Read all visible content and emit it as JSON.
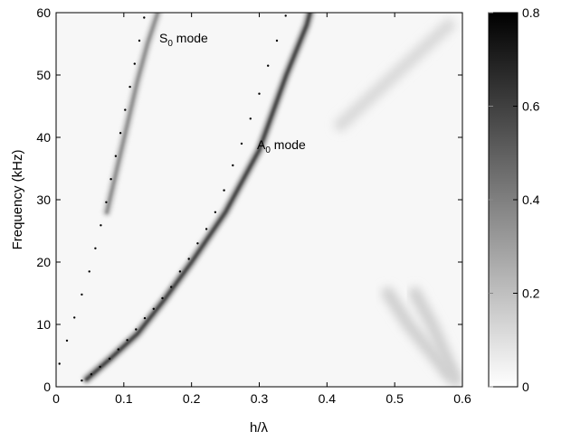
{
  "chart_data": {
    "type": "heatmap",
    "title": "",
    "xlabel": "h/λ",
    "ylabel": "Frequency (kHz)",
    "xlim": [
      0,
      0.6
    ],
    "ylim": [
      0,
      60
    ],
    "xticks": [
      0,
      0.1,
      0.2,
      0.3,
      0.4,
      0.5,
      0.6
    ],
    "xtick_labels": [
      "0",
      "0.1",
      "0.2",
      "0.3",
      "0.4",
      "0.5",
      "0.6"
    ],
    "yticks": [
      0,
      10,
      20,
      30,
      40,
      50,
      60
    ],
    "ytick_labels": [
      "0",
      "10",
      "20",
      "30",
      "40",
      "50",
      "60"
    ],
    "grid": false,
    "colormap": "gray reversed (white = 0, black = max)",
    "colorbar": {
      "range": [
        0,
        0.8
      ],
      "ticks": [
        0,
        0.2,
        0.4,
        0.6,
        0.8
      ],
      "tick_labels": [
        "0",
        "0.2",
        "0.4",
        "0.6",
        "0.8"
      ]
    },
    "annotations": [
      {
        "text_main": "S",
        "text_sub": "0",
        "text_rest": " mode",
        "x": 0.135,
        "y": 55.0
      },
      {
        "text_main": "A",
        "text_sub": "0",
        "text_rest": " mode",
        "x": 0.27,
        "y": 38.5
      }
    ],
    "ridges": [
      {
        "mode": "A0",
        "intensity": 0.6,
        "points": [
          [
            0.045,
            1.2
          ],
          [
            0.08,
            4.5
          ],
          [
            0.12,
            8.5
          ],
          [
            0.16,
            14
          ],
          [
            0.2,
            20
          ],
          [
            0.25,
            28
          ],
          [
            0.3,
            38
          ],
          [
            0.34,
            50
          ],
          [
            0.37,
            58
          ],
          [
            0.375,
            60
          ]
        ]
      },
      {
        "mode": "S0",
        "intensity": 0.35,
        "points": [
          [
            0.075,
            28
          ],
          [
            0.09,
            35
          ],
          [
            0.105,
            42
          ],
          [
            0.12,
            49
          ],
          [
            0.135,
            55
          ],
          [
            0.15,
            60
          ]
        ]
      }
    ],
    "faint_features": [
      {
        "intensity": 0.12,
        "points": [
          [
            0.42,
            42
          ],
          [
            0.47,
            47
          ],
          [
            0.52,
            52
          ],
          [
            0.58,
            58
          ]
        ]
      },
      {
        "intensity": 0.15,
        "points": [
          [
            0.49,
            15
          ],
          [
            0.52,
            10
          ],
          [
            0.55,
            6
          ],
          [
            0.58,
            2
          ]
        ]
      },
      {
        "intensity": 0.15,
        "points": [
          [
            0.53,
            15
          ],
          [
            0.555,
            10
          ],
          [
            0.575,
            5
          ],
          [
            0.59,
            1
          ]
        ]
      }
    ],
    "series": [
      {
        "name": "A0 mode",
        "style": "dots",
        "points": [
          [
            0.038,
            1.0
          ],
          [
            0.052,
            2.0
          ],
          [
            0.065,
            3.2
          ],
          [
            0.079,
            4.5
          ],
          [
            0.092,
            6.0
          ],
          [
            0.105,
            7.5
          ],
          [
            0.118,
            9.2
          ],
          [
            0.131,
            11.0
          ],
          [
            0.144,
            12.5
          ],
          [
            0.157,
            14.2
          ],
          [
            0.17,
            16.0
          ],
          [
            0.183,
            18.5
          ],
          [
            0.196,
            20.5
          ],
          [
            0.209,
            23.0
          ],
          [
            0.222,
            25.3
          ],
          [
            0.235,
            28.0
          ],
          [
            0.248,
            31.5
          ],
          [
            0.261,
            35.5
          ],
          [
            0.274,
            39.0
          ],
          [
            0.287,
            43.0
          ],
          [
            0.3,
            47.0
          ],
          [
            0.313,
            51.5
          ],
          [
            0.326,
            55.5
          ],
          [
            0.339,
            59.5
          ]
        ]
      },
      {
        "name": "S0 mode",
        "style": "dots",
        "points": [
          [
            0.005,
            3.7
          ],
          [
            0.016,
            7.4
          ],
          [
            0.027,
            11.1
          ],
          [
            0.038,
            14.8
          ],
          [
            0.049,
            18.5
          ],
          [
            0.058,
            22.2
          ],
          [
            0.066,
            25.9
          ],
          [
            0.074,
            29.6
          ],
          [
            0.081,
            33.3
          ],
          [
            0.088,
            37.0
          ],
          [
            0.095,
            40.7
          ],
          [
            0.102,
            44.4
          ],
          [
            0.109,
            48.1
          ],
          [
            0.116,
            51.8
          ],
          [
            0.123,
            55.5
          ],
          [
            0.13,
            59.2
          ]
        ]
      }
    ]
  }
}
